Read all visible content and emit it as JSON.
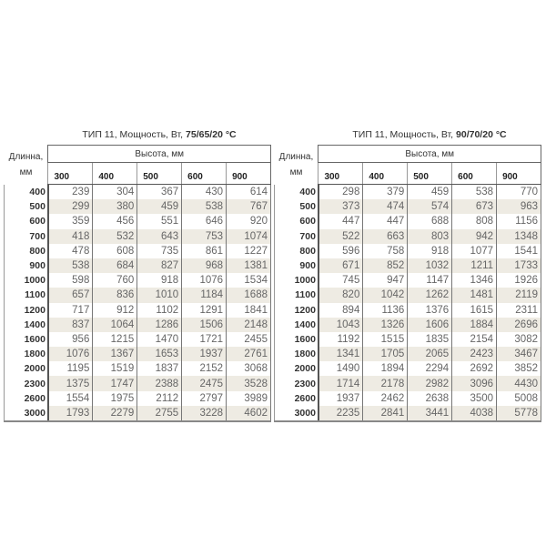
{
  "tables": [
    {
      "title_prefix": "ТИП 11, Мощность, Вт,",
      "title_temp": "75/65/20 °C",
      "height_label": "Высота, мм",
      "length_label": "Длинна, мм",
      "heights": [
        "300",
        "400",
        "500",
        "600",
        "900"
      ],
      "rows": [
        {
          "length": "400",
          "values": [
            "239",
            "304",
            "367",
            "430",
            "614"
          ]
        },
        {
          "length": "500",
          "values": [
            "299",
            "380",
            "459",
            "538",
            "767"
          ]
        },
        {
          "length": "600",
          "values": [
            "359",
            "456",
            "551",
            "646",
            "920"
          ]
        },
        {
          "length": "700",
          "values": [
            "418",
            "532",
            "643",
            "753",
            "1074"
          ]
        },
        {
          "length": "800",
          "values": [
            "478",
            "608",
            "735",
            "861",
            "1227"
          ]
        },
        {
          "length": "900",
          "values": [
            "538",
            "684",
            "827",
            "968",
            "1381"
          ]
        },
        {
          "length": "1000",
          "values": [
            "598",
            "760",
            "918",
            "1076",
            "1534"
          ]
        },
        {
          "length": "1100",
          "values": [
            "657",
            "836",
            "1010",
            "1184",
            "1688"
          ]
        },
        {
          "length": "1200",
          "values": [
            "717",
            "912",
            "1102",
            "1291",
            "1841"
          ]
        },
        {
          "length": "1400",
          "values": [
            "837",
            "1064",
            "1286",
            "1506",
            "2148"
          ]
        },
        {
          "length": "1600",
          "values": [
            "956",
            "1215",
            "1470",
            "1721",
            "2455"
          ]
        },
        {
          "length": "1800",
          "values": [
            "1076",
            "1367",
            "1653",
            "1937",
            "2761"
          ]
        },
        {
          "length": "2000",
          "values": [
            "1195",
            "1519",
            "1837",
            "2152",
            "3068"
          ]
        },
        {
          "length": "2300",
          "values": [
            "1375",
            "1747",
            "2388",
            "2475",
            "3528"
          ]
        },
        {
          "length": "2600",
          "values": [
            "1554",
            "1975",
            "2112",
            "2797",
            "3989"
          ]
        },
        {
          "length": "3000",
          "values": [
            "1793",
            "2279",
            "2755",
            "3228",
            "4602"
          ]
        }
      ]
    },
    {
      "title_prefix": "ТИП 11, Мощность, Вт,",
      "title_temp": "90/70/20 °C",
      "height_label": "Высота, мм",
      "length_label": "Длинна, мм",
      "heights": [
        "300",
        "400",
        "500",
        "600",
        "900"
      ],
      "rows": [
        {
          "length": "400",
          "values": [
            "298",
            "379",
            "459",
            "538",
            "770"
          ]
        },
        {
          "length": "500",
          "values": [
            "373",
            "474",
            "574",
            "673",
            "963"
          ]
        },
        {
          "length": "600",
          "values": [
            "447",
            "447",
            "688",
            "808",
            "1156"
          ]
        },
        {
          "length": "700",
          "values": [
            "522",
            "663",
            "803",
            "942",
            "1348"
          ]
        },
        {
          "length": "800",
          "values": [
            "596",
            "758",
            "918",
            "1077",
            "1541"
          ]
        },
        {
          "length": "900",
          "values": [
            "671",
            "852",
            "1032",
            "1211",
            "1733"
          ]
        },
        {
          "length": "1000",
          "values": [
            "745",
            "947",
            "1147",
            "1346",
            "1926"
          ]
        },
        {
          "length": "1100",
          "values": [
            "820",
            "1042",
            "1262",
            "1481",
            "2119"
          ]
        },
        {
          "length": "1200",
          "values": [
            "894",
            "1136",
            "1376",
            "1615",
            "2311"
          ]
        },
        {
          "length": "1400",
          "values": [
            "1043",
            "1326",
            "1606",
            "1884",
            "2696"
          ]
        },
        {
          "length": "1600",
          "values": [
            "1192",
            "1515",
            "1835",
            "2154",
            "3082"
          ]
        },
        {
          "length": "1800",
          "values": [
            "1341",
            "1705",
            "2065",
            "2423",
            "3467"
          ]
        },
        {
          "length": "2000",
          "values": [
            "1490",
            "1894",
            "2294",
            "2692",
            "3852"
          ]
        },
        {
          "length": "2300",
          "values": [
            "1714",
            "2178",
            "2982",
            "3096",
            "4430"
          ]
        },
        {
          "length": "2600",
          "values": [
            "1937",
            "2462",
            "2638",
            "3500",
            "5008"
          ]
        },
        {
          "length": "3000",
          "values": [
            "2235",
            "2841",
            "3441",
            "4038",
            "5778"
          ]
        }
      ]
    }
  ]
}
